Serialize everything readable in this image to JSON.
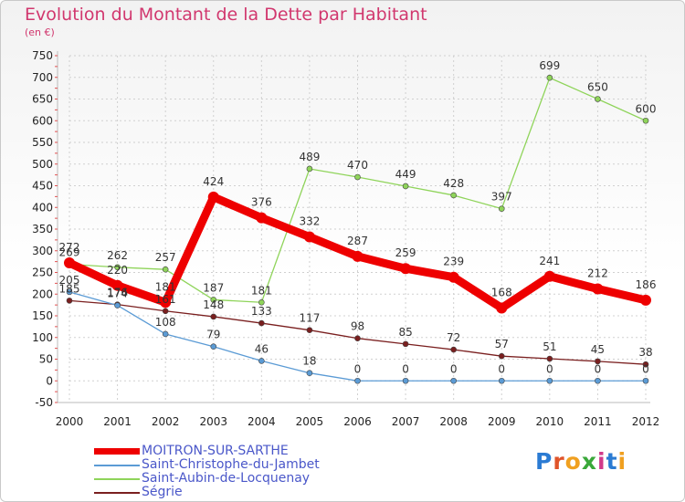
{
  "header": {
    "title": "Evolution du Montant de la Dette par Habitant",
    "subtitle": "(en €)"
  },
  "logo": {
    "text": "Proxiti",
    "colors": [
      "#2b7bd3",
      "#e0542a",
      "#f0a020",
      "#3aa83a",
      "#d23a8a",
      "#2b7bd3",
      "#f0a020"
    ]
  },
  "chart_data": {
    "type": "line",
    "x": [
      "2000",
      "2001",
      "2002",
      "2003",
      "2004",
      "2005",
      "2006",
      "2007",
      "2008",
      "2009",
      "2010",
      "2011",
      "2012"
    ],
    "ylim": [
      -50,
      750
    ],
    "yticks": [
      -50,
      0,
      50,
      100,
      150,
      200,
      250,
      300,
      350,
      400,
      450,
      500,
      550,
      600,
      650,
      700,
      750
    ],
    "grid": true,
    "legend": "bottom-left",
    "series": [
      {
        "name": "MOITRON-SUR-SARTHE",
        "color": "#ee0000",
        "values": [
          272,
          220,
          181,
          424,
          376,
          332,
          287,
          259,
          239,
          168,
          241,
          212,
          186
        ]
      },
      {
        "name": "Saint-Christophe-du-Jambet",
        "color": "#5b9bd5",
        "values": [
          205,
          174,
          108,
          79,
          46,
          18,
          0,
          0,
          0,
          0,
          0,
          0,
          0
        ]
      },
      {
        "name": "Saint-Aubin-de-Locquenay",
        "color": "#8fd45a",
        "values": [
          269,
          262,
          257,
          187,
          181,
          489,
          470,
          449,
          428,
          397,
          699,
          650,
          600
        ]
      },
      {
        "name": "Ségrie",
        "color": "#7a1f1f",
        "values": [
          185,
          176,
          161,
          148,
          133,
          117,
          98,
          85,
          72,
          57,
          51,
          45,
          38
        ]
      }
    ]
  }
}
